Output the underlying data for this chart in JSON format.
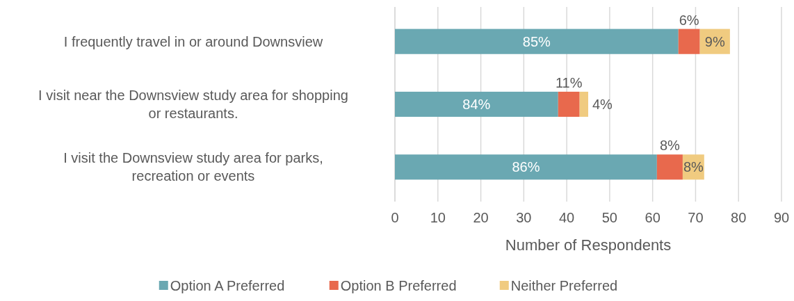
{
  "chart_data": {
    "type": "bar",
    "orientation": "horizontal",
    "stacked": true,
    "categories": [
      "I frequently travel in or around Downsview",
      "I visit near the Downsview study area for shopping or restaurants.",
      "I visit the Downsview study area for parks, recreation or events"
    ],
    "series": [
      {
        "name": "Option A Preferred",
        "color": "#6aa8b2",
        "values": [
          66,
          38,
          61
        ]
      },
      {
        "name": "Option B Preferred",
        "color": "#e8694d",
        "values": [
          5,
          5,
          6
        ]
      },
      {
        "name": "Neither Preferred",
        "color": "#f0cb80",
        "values": [
          7,
          2,
          5
        ]
      }
    ],
    "annotations": [
      "85%",
      "6%",
      "9%",
      "84%",
      "11%",
      "4%",
      "86%",
      "8%",
      "8%"
    ],
    "xlabel": "Number of Respondents",
    "xlim": [
      0,
      90
    ],
    "xticks": [
      0,
      10,
      20,
      30,
      40,
      50,
      60,
      70,
      80,
      90
    ],
    "grid": "x",
    "legend": "bottom"
  }
}
